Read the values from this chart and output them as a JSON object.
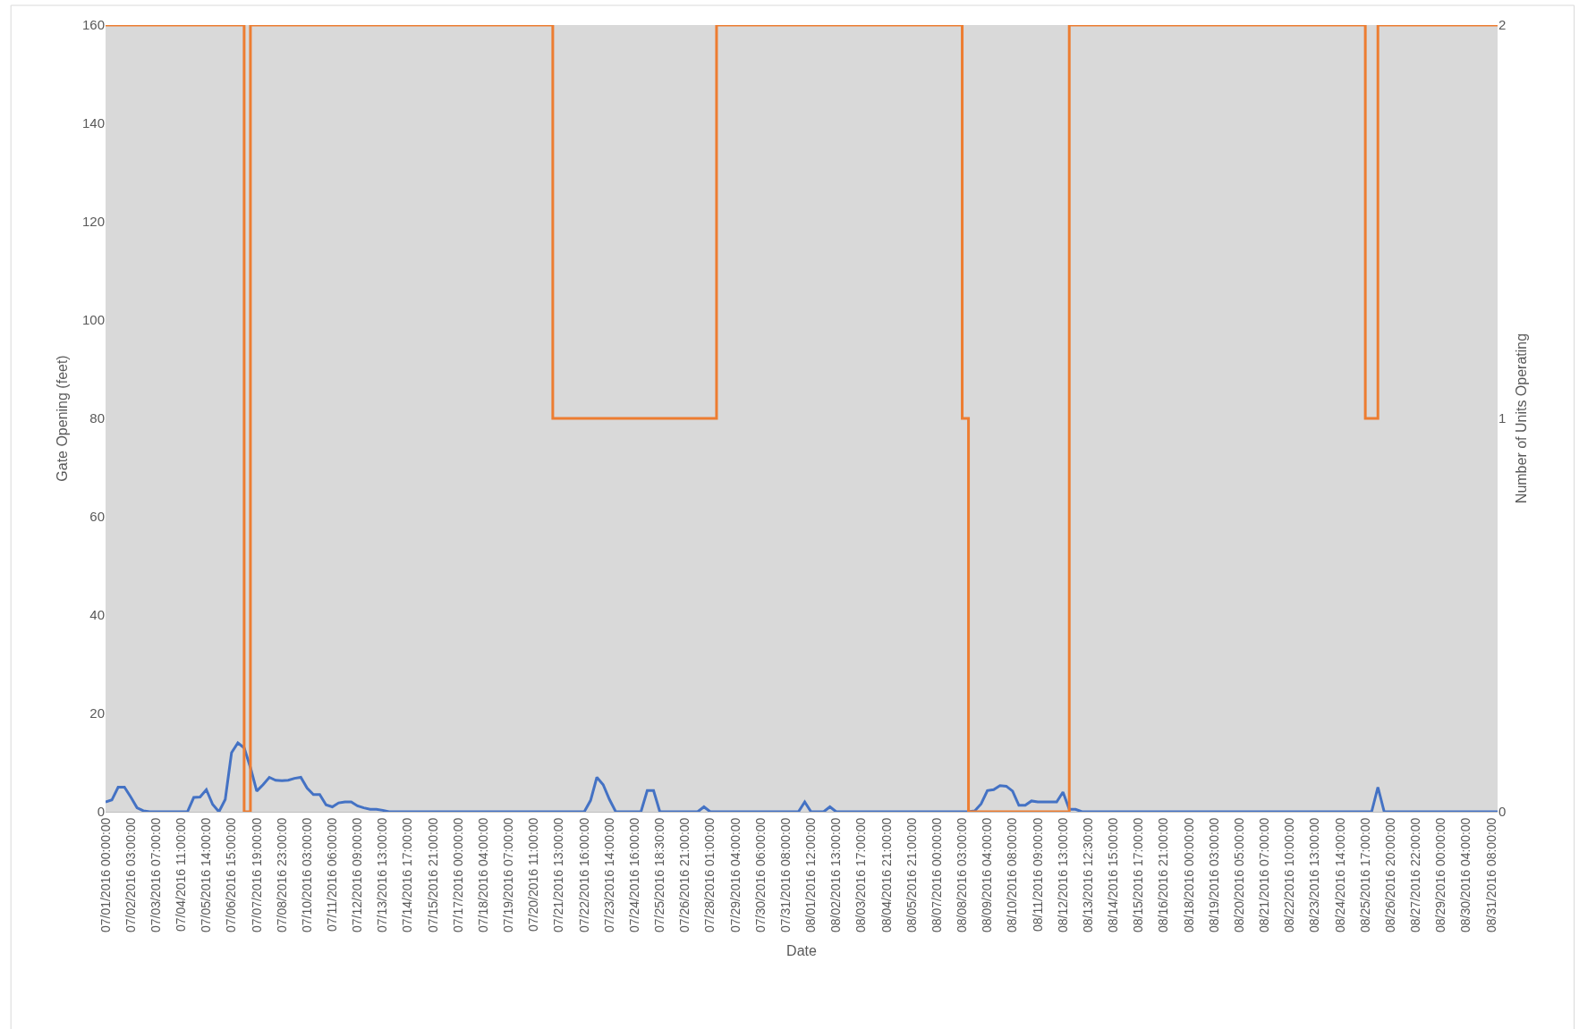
{
  "chart_data": {
    "type": "line",
    "xlabel": "Date",
    "ylabel": "Gate Opening (feet)",
    "y2label": "Number of Units Operating",
    "categories": [
      "07/01/2016 00:00:00",
      null,
      null,
      null,
      "07/02/2016 03:00:00",
      null,
      null,
      null,
      "07/03/2016 07:00:00",
      null,
      null,
      null,
      "07/04/2016 11:00:00",
      null,
      null,
      null,
      "07/05/2016 14:00:00",
      null,
      null,
      null,
      "07/06/2016 15:00:00",
      null,
      null,
      null,
      "07/07/2016 19:00:00",
      null,
      null,
      null,
      "07/08/2016 23:00:00",
      null,
      null,
      null,
      "07/10/2016 03:00:00",
      null,
      null,
      null,
      "07/11/2016 06:00:00",
      null,
      null,
      null,
      "07/12/2016 09:00:00",
      null,
      null,
      null,
      "07/13/2016 13:00:00",
      null,
      null,
      null,
      "07/14/2016 17:00:00",
      null,
      null,
      null,
      "07/15/2016 21:00:00",
      null,
      null,
      null,
      "07/17/2016 00:00:00",
      null,
      null,
      null,
      "07/18/2016 04:00:00",
      null,
      null,
      null,
      "07/19/2016 07:00:00",
      null,
      null,
      null,
      "07/20/2016 11:00:00",
      null,
      null,
      null,
      "07/21/2016 13:00:00",
      null,
      null,
      null,
      "07/22/2016 16:00:00",
      null,
      null,
      null,
      "07/23/2016 14:00:00",
      null,
      null,
      null,
      "07/24/2016 16:00:00",
      null,
      null,
      null,
      "07/25/2016 18:30:00",
      null,
      null,
      null,
      "07/26/2016 21:00:00",
      null,
      null,
      null,
      "07/28/2016 01:00:00",
      null,
      null,
      null,
      "07/29/2016 04:00:00",
      null,
      null,
      null,
      "07/30/2016 06:00:00",
      null,
      null,
      null,
      "07/31/2016 08:00:00",
      null,
      null,
      null,
      "08/01/2016 12:00:00",
      null,
      null,
      null,
      "08/02/2016 13:00:00",
      null,
      null,
      null,
      "08/03/2016 17:00:00",
      null,
      null,
      null,
      "08/04/2016 21:00:00",
      null,
      null,
      null,
      "08/05/2016 21:00:00",
      null,
      null,
      null,
      "08/07/2016 00:00:00",
      null,
      null,
      null,
      "08/08/2016 03:00:00",
      null,
      null,
      null,
      "08/09/2016 04:00:00",
      null,
      null,
      null,
      "08/10/2016 08:00:00",
      null,
      null,
      null,
      "08/11/2016 09:00:00",
      null,
      null,
      null,
      "08/12/2016 13:00:00",
      null,
      null,
      null,
      "08/13/2016 12:30:00",
      null,
      null,
      null,
      "08/14/2016 15:00:00",
      null,
      null,
      null,
      "08/15/2016 17:00:00",
      null,
      null,
      null,
      "08/16/2016 21:00:00",
      null,
      null,
      null,
      "08/18/2016 00:00:00",
      null,
      null,
      null,
      "08/19/2016 03:00:00",
      null,
      null,
      null,
      "08/20/2016 05:00:00",
      null,
      null,
      null,
      "08/21/2016 07:00:00",
      null,
      null,
      null,
      "08/22/2016 10:00:00",
      null,
      null,
      null,
      "08/23/2016 13:00:00",
      null,
      null,
      null,
      "08/24/2016 14:00:00",
      null,
      null,
      null,
      "08/25/2016 17:00:00",
      null,
      null,
      null,
      "08/26/2016 20:00:00",
      null,
      null,
      null,
      "08/27/2016 22:00:00",
      null,
      null,
      null,
      "08/29/2016 00:00:00",
      null,
      null,
      null,
      "08/30/2016 04:00:00",
      null,
      null,
      null,
      "08/31/2016 08:00:00",
      null
    ],
    "ylim": [
      0,
      160
    ],
    "yticks": [
      0,
      20,
      40,
      60,
      80,
      100,
      120,
      140,
      160
    ],
    "y2lim": [
      0,
      2
    ],
    "y2ticks": [
      0,
      1,
      2
    ],
    "grid": false,
    "marker": "none",
    "line_style": "solid",
    "series": [
      {
        "color": "#4472c4",
        "values": [
          2,
          2.4,
          5,
          5,
          3,
          0.8,
          0.2,
          0,
          0,
          0,
          0,
          0,
          0,
          0,
          2.9,
          3,
          4.5,
          1.5,
          0,
          2.5,
          12,
          14,
          13,
          9,
          4.2,
          5.5,
          7,
          6.4,
          6.3,
          6.4,
          6.8,
          7,
          4.8,
          3.5,
          3.5,
          1.4,
          1,
          1.8,
          2,
          2,
          1.2,
          0.8,
          0.5,
          0.5,
          0.3,
          0,
          0,
          0,
          0,
          0,
          0,
          0,
          0,
          0,
          0,
          0,
          0,
          0,
          0,
          0,
          0,
          0,
          0,
          0,
          0,
          0,
          0,
          0,
          0,
          0,
          0,
          0,
          0,
          0,
          0,
          0,
          0,
          2.3,
          7,
          5.5,
          2.5,
          0,
          0,
          0,
          0,
          0,
          4.3,
          4.3,
          0,
          0,
          0,
          0,
          0,
          0,
          0,
          1,
          0,
          0,
          0,
          0,
          0,
          0,
          0,
          0,
          0,
          0,
          0,
          0,
          0,
          0,
          0,
          2,
          0,
          0,
          0,
          1,
          0,
          0,
          0,
          0,
          0,
          0,
          0,
          0,
          0,
          0,
          0,
          0,
          0,
          0,
          0,
          0,
          0,
          0,
          0,
          0,
          0,
          0,
          0.2,
          1.6,
          4.3,
          4.5,
          5.3,
          5.2,
          4.2,
          1.3,
          1.3,
          2.2,
          2,
          2,
          2,
          2,
          4,
          0.5,
          0.5,
          0,
          0,
          0,
          0,
          0,
          0,
          0,
          0,
          0,
          0,
          0,
          0,
          0,
          0,
          0,
          0,
          0,
          0,
          0,
          0,
          0,
          0,
          0,
          0,
          0,
          0,
          0,
          0,
          0,
          0,
          0,
          0,
          0,
          0,
          0,
          0,
          0,
          0,
          0,
          0,
          0,
          0,
          0,
          0,
          0,
          0,
          0,
          5,
          0,
          0,
          0,
          0,
          0,
          0,
          0,
          0,
          0,
          0,
          0,
          0,
          0,
          0,
          0,
          0,
          0,
          0,
          0
        ]
      },
      {
        "type": "step",
        "axis": "y2",
        "color": "#ed7d31",
        "values": [
          2,
          2,
          2,
          2,
          2,
          2,
          2,
          2,
          2,
          2,
          2,
          2,
          2,
          2,
          2,
          2,
          2,
          2,
          2,
          2,
          2,
          2,
          0,
          2,
          2,
          2,
          2,
          2,
          2,
          2,
          2,
          2,
          2,
          2,
          2,
          2,
          2,
          2,
          2,
          2,
          2,
          2,
          2,
          2,
          2,
          2,
          2,
          2,
          2,
          2,
          2,
          2,
          2,
          2,
          2,
          2,
          2,
          2,
          2,
          2,
          2,
          2,
          2,
          2,
          2,
          2,
          2,
          2,
          2,
          2,
          2,
          1,
          1,
          1,
          1,
          1,
          1,
          1,
          1,
          1,
          1,
          1,
          1,
          1,
          1,
          1,
          1,
          1,
          1,
          1,
          1,
          1,
          1,
          1,
          1,
          1,
          1,
          2,
          2,
          2,
          2,
          2,
          2,
          2,
          2,
          2,
          2,
          2,
          2,
          2,
          2,
          2,
          2,
          2,
          2,
          2,
          2,
          2,
          2,
          2,
          2,
          2,
          2,
          2,
          2,
          2,
          2,
          2,
          2,
          2,
          2,
          2,
          2,
          2,
          2,
          2,
          1,
          0,
          0,
          0,
          0,
          0,
          0,
          0,
          0,
          0,
          0,
          0,
          0,
          0,
          0,
          0,
          0,
          2,
          2,
          2,
          2,
          2,
          2,
          2,
          2,
          2,
          2,
          2,
          2,
          2,
          2,
          2,
          2,
          2,
          2,
          2,
          2,
          2,
          2,
          2,
          2,
          2,
          2,
          2,
          2,
          2,
          2,
          2,
          2,
          2,
          2,
          2,
          2,
          2,
          2,
          2,
          2,
          2,
          2,
          2,
          2,
          2,
          2,
          2,
          1,
          1,
          2,
          2,
          2,
          2,
          2,
          2,
          2,
          2,
          2,
          2,
          2,
          2,
          2,
          2,
          2,
          2,
          2,
          2,
          2,
          2
        ]
      }
    ]
  }
}
